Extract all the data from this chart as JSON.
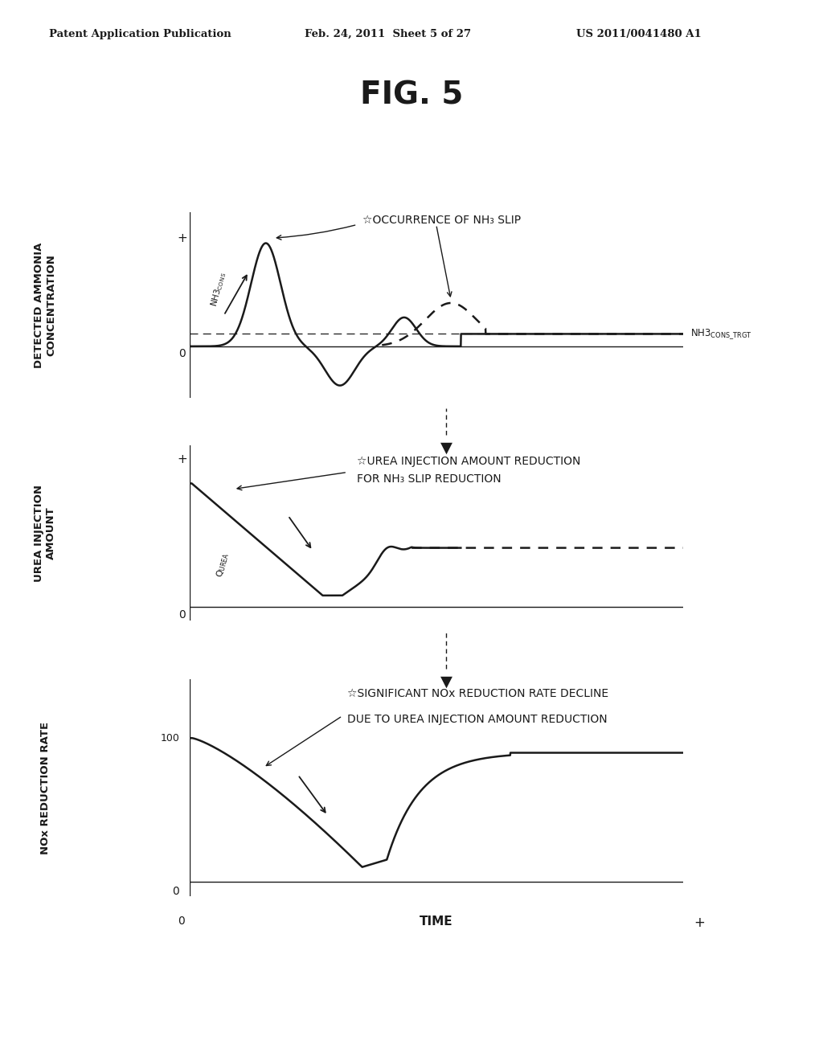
{
  "title": "FIG. 5",
  "header_left": "Patent Application Publication",
  "header_center": "Feb. 24, 2011  Sheet 5 of 27",
  "header_right": "US 2011/0041480 A1",
  "background_color": "#ffffff",
  "text_color": "#1a1a1a",
  "panel1": {
    "ylabel_main": "DETECTED AMMONIA\nCONCENTRATION",
    "ylabel_curve": "NH3CONS",
    "annotation_line1": "☆OCCURRENCE OF NH",
    "annotation_sub": "3",
    "annotation_line2": " SLIP",
    "label_ref": "NH3",
    "label_ref_sub": "CONS_TRGT",
    "yplus": "+",
    "yzero": "0"
  },
  "panel2": {
    "ylabel_main": "UREA INJECTION\nAMOUNT",
    "ylabel_curve": "QUREA",
    "annotation_line1": "☆UREA INJECTION AMOUNT REDUCTION",
    "annotation_line2": "FOR NH₃ SLIP REDUCTION",
    "yplus": "+",
    "yzero": "0"
  },
  "panel3": {
    "ylabel_main": "NOx REDUCTION RATE",
    "annotation_line1": "☆SIGNIFICANT NOx REDUCTION RATE DECLINE",
    "annotation_line2": "DUE TO UREA INJECTION AMOUNT REDUCTION",
    "y100": "100",
    "yzero": "0",
    "xlabel": "TIME",
    "xzero": "0",
    "xplus": "+"
  }
}
